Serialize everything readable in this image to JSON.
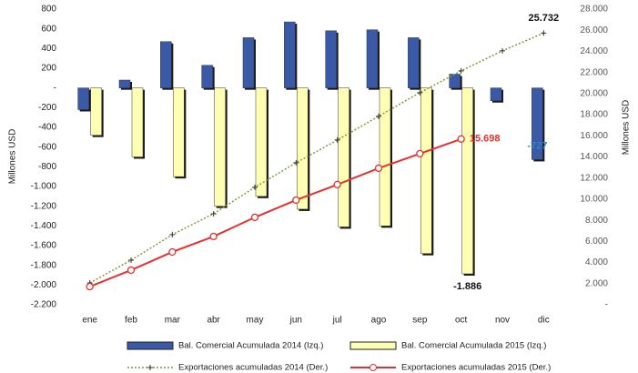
{
  "chart_data": {
    "type": "bar-line",
    "y_label": "Millones USD",
    "y2_label": "Millones USD",
    "categories": [
      "ene",
      "feb",
      "mar",
      "abr",
      "may",
      "jun",
      "jul",
      "ago",
      "sep",
      "oct",
      "nov",
      "dic"
    ],
    "ylim": [
      -2200,
      800
    ],
    "yticks": [
      {
        "value": -2200,
        "label": "-2.200"
      },
      {
        "value": -2000,
        "label": "-2.000"
      },
      {
        "value": -1800,
        "label": "-1.800"
      },
      {
        "value": -1600,
        "label": "-1.600"
      },
      {
        "value": -1400,
        "label": "-1.400"
      },
      {
        "value": -1200,
        "label": "-1.200"
      },
      {
        "value": -1000,
        "label": "-1.000"
      },
      -800,
      -600,
      -400,
      -200,
      {
        "value": 0,
        "label": "-"
      },
      200,
      400,
      600,
      800
    ],
    "y2lim": [
      0,
      28000
    ],
    "y2ticks": [
      {
        "value": 0,
        "label": "-"
      },
      {
        "value": 2000,
        "label": "2.000"
      },
      {
        "value": 4000,
        "label": "4.000"
      },
      {
        "value": 6000,
        "label": "6.000"
      },
      {
        "value": 8000,
        "label": "8.000"
      },
      {
        "value": 10000,
        "label": "10.000"
      },
      {
        "value": 12000,
        "label": "12.000"
      },
      {
        "value": 14000,
        "label": "14.000"
      },
      {
        "value": 16000,
        "label": "16.000"
      },
      {
        "value": 18000,
        "label": "18.000"
      },
      {
        "value": 20000,
        "label": "20.000"
      },
      {
        "value": 22000,
        "label": "22.000"
      },
      {
        "value": 24000,
        "label": "24.000"
      },
      {
        "value": 26000,
        "label": "26.000"
      },
      {
        "value": 28000,
        "label": "28.000"
      }
    ],
    "series": [
      {
        "name": "Bal. Comercial Acumulada 2014 (Izq.)",
        "kind": "bar",
        "color": "#3a5aa8",
        "label_color": "#2e86c1",
        "values": [
          -220,
          80,
          470,
          230,
          510,
          670,
          580,
          590,
          510,
          140,
          -130,
          -727
        ],
        "value_labels": [
          null,
          null,
          null,
          null,
          null,
          null,
          null,
          null,
          null,
          null,
          null,
          "-727"
        ]
      },
      {
        "name": "Bal. Comercial Acumulada 2015 (Izq.)",
        "kind": "bar",
        "color": "#ffffb3",
        "label_color": "#111",
        "values": [
          -480,
          -700,
          -900,
          -1200,
          -1100,
          -1230,
          -1410,
          -1400,
          -1680,
          -1886,
          null,
          null
        ],
        "value_labels": [
          null,
          null,
          null,
          null,
          null,
          null,
          null,
          null,
          null,
          "-1.886",
          null,
          null
        ]
      },
      {
        "name": "Exportaciones acumuladas 2014 (Der.)",
        "kind": "line",
        "axis": "y2",
        "color": "#7a9e3c",
        "label_color": "#111",
        "values": [
          2070,
          4220,
          6640,
          8620,
          11120,
          13450,
          15600,
          17850,
          20090,
          22150,
          24050,
          25732
        ],
        "value_labels": [
          null,
          null,
          null,
          null,
          null,
          null,
          null,
          null,
          null,
          null,
          null,
          "25.732"
        ]
      },
      {
        "name": "Exportaciones acumuladas 2015 (Der.)",
        "kind": "line",
        "axis": "y2",
        "color": "#e53030",
        "label_color": "#e53030",
        "values": [
          1720,
          3280,
          5000,
          6470,
          8280,
          9910,
          11380,
          12930,
          14310,
          15698,
          null,
          null
        ],
        "value_labels": [
          null,
          null,
          null,
          null,
          null,
          null,
          null,
          null,
          null,
          "15.698",
          null,
          null
        ]
      }
    ]
  }
}
